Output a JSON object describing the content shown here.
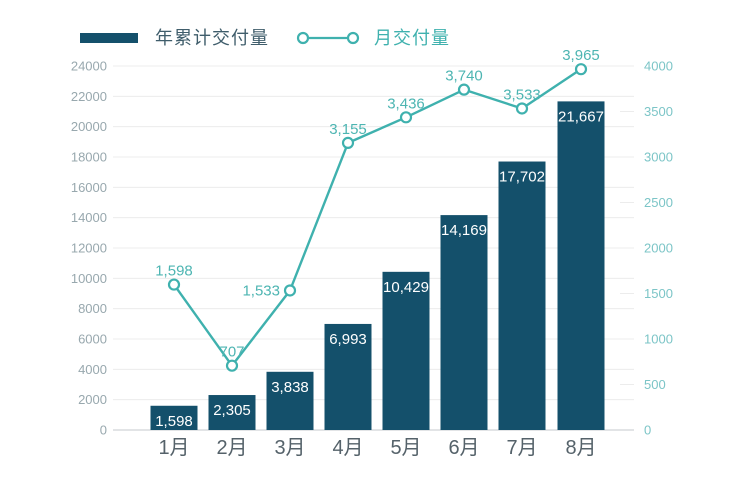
{
  "legend": {
    "position": "top",
    "items": [
      {
        "label": "年累计交付量",
        "type": "bar"
      },
      {
        "label": "月交付量",
        "type": "line"
      }
    ]
  },
  "colors": {
    "background": "#ffffff",
    "bar": "#14506b",
    "bar_label": "#ffffff",
    "line": "#3fb1ae",
    "marker_fill": "#ffffff",
    "line_label": "#4db5b2",
    "left_axis_label": "#98a8ae",
    "right_axis_label": "#7cc5c7",
    "x_axis_label": "#55626a",
    "gridline": "#ececec",
    "axis_line": "#d8dcde",
    "legend_bar_label": "#3f5d6b"
  },
  "chart_data": {
    "type": "bar",
    "subtype": "bar-line-combo",
    "title": "",
    "xlabel": "",
    "ylabel": "",
    "grid": true,
    "legend_position": "top",
    "categories": [
      "1月",
      "2月",
      "3月",
      "4月",
      "5月",
      "6月",
      "7月",
      "8月"
    ],
    "series": [
      {
        "name": "年累计交付量",
        "type": "bar",
        "axis": "left",
        "values": [
          1598,
          2305,
          3838,
          6993,
          10429,
          14169,
          17702,
          21667
        ],
        "labels": [
          "1,598",
          "2,305",
          "3,838",
          "6,993",
          "10,429",
          "14,169",
          "17,702",
          "21,667"
        ]
      },
      {
        "name": "月交付量",
        "type": "line",
        "axis": "right",
        "values": [
          1598,
          707,
          1533,
          3155,
          3436,
          3740,
          3533,
          3965
        ],
        "labels": [
          "1,598",
          "707",
          "1,533",
          "3,155",
          "3,436",
          "3,740",
          "3,533",
          "3,965"
        ]
      }
    ],
    "left_axis": {
      "min": 0,
      "max": 24000,
      "step": 2000,
      "ticks": [
        0,
        2000,
        4000,
        6000,
        8000,
        10000,
        12000,
        14000,
        16000,
        18000,
        20000,
        22000,
        24000
      ]
    },
    "right_axis": {
      "min": 0,
      "max": 4000,
      "step": 500,
      "ticks": [
        0,
        500,
        1000,
        1500,
        2000,
        2500,
        3000,
        3500,
        4000
      ]
    }
  }
}
